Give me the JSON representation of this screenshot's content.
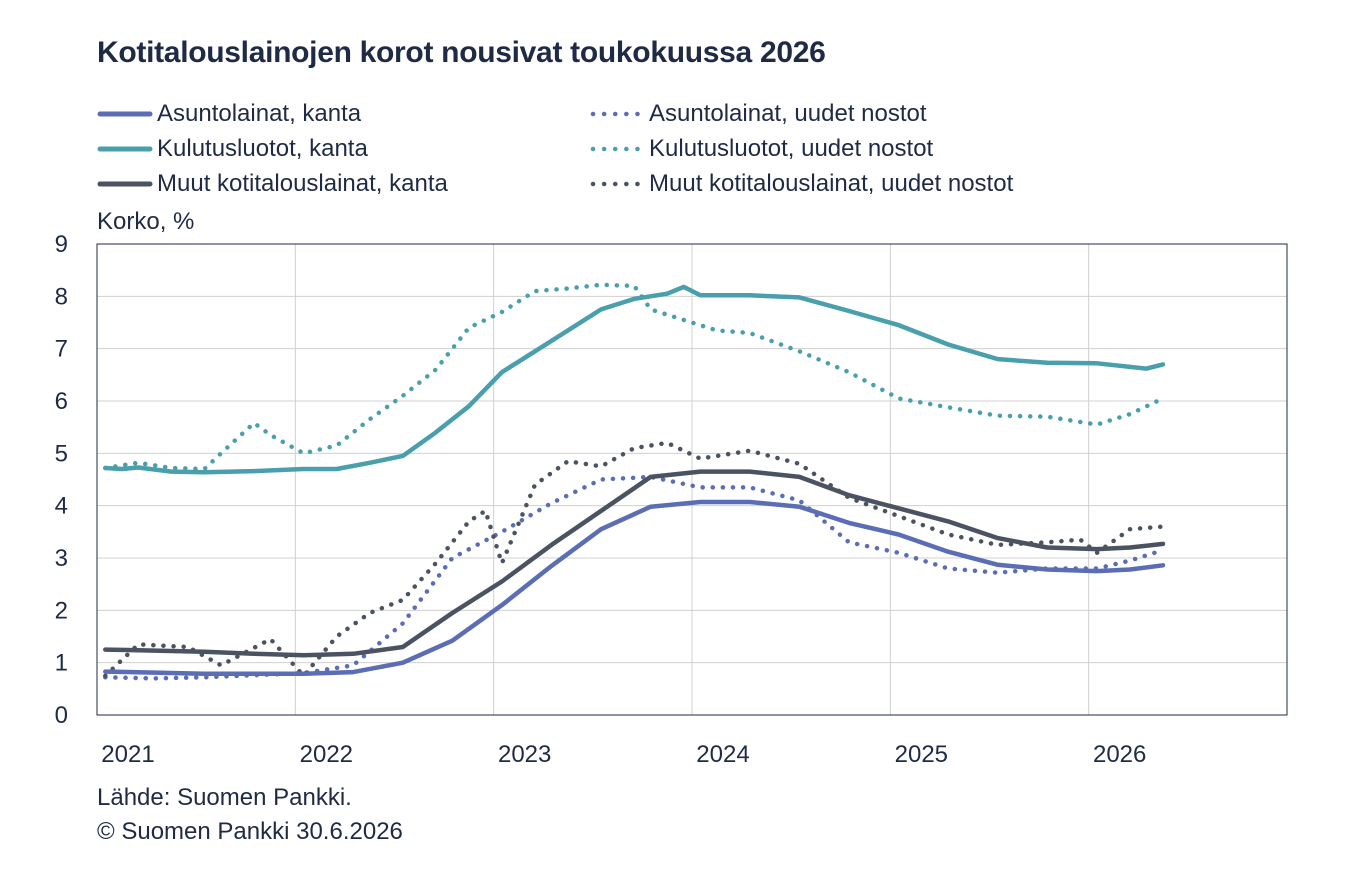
{
  "title": "Kotitalouslainojen korot nousivat toukokuussa 2026",
  "footer": {
    "source": "Lähde: Suomen Pankki.",
    "copyright": "© Suomen Pankki 30.6.2026"
  },
  "colors": {
    "asunto": "#5b6db5",
    "kulutus": "#4a9fad",
    "muut": "#4b5261",
    "grid": "#d0d0d0",
    "axis": "#1f2a44"
  },
  "chart_data": {
    "type": "line",
    "title": "Kotitalouslainojen korot nousivat toukokuussa 2026",
    "xlabel": "",
    "ylabel": "Korko, %",
    "ylim": [
      0,
      9
    ],
    "yticks": [
      0,
      1,
      2,
      3,
      4,
      5,
      6,
      7,
      8,
      9
    ],
    "xlim": [
      "2021-01",
      "2026-12"
    ],
    "xticks": [
      "2021",
      "2022",
      "2023",
      "2024",
      "2025",
      "2026"
    ],
    "grid": true,
    "legend_position": "top",
    "series": [
      {
        "name": "Asuntolainat, kanta",
        "style": "solid",
        "color_key": "asunto",
        "points": [
          [
            "2021-01",
            0.83
          ],
          [
            "2021-04",
            0.81
          ],
          [
            "2021-07",
            0.79
          ],
          [
            "2021-10",
            0.79
          ],
          [
            "2022-01",
            0.79
          ],
          [
            "2022-04",
            0.82
          ],
          [
            "2022-07",
            1.0
          ],
          [
            "2022-10",
            1.42
          ],
          [
            "2023-01",
            2.1
          ],
          [
            "2023-04",
            2.85
          ],
          [
            "2023-07",
            3.55
          ],
          [
            "2023-10",
            3.98
          ],
          [
            "2024-01",
            4.07
          ],
          [
            "2024-04",
            4.07
          ],
          [
            "2024-07",
            3.98
          ],
          [
            "2024-10",
            3.67
          ],
          [
            "2025-01",
            3.45
          ],
          [
            "2025-04",
            3.12
          ],
          [
            "2025-07",
            2.87
          ],
          [
            "2025-10",
            2.78
          ],
          [
            "2026-01",
            2.75
          ],
          [
            "2026-03",
            2.78
          ],
          [
            "2026-05",
            2.86
          ]
        ]
      },
      {
        "name": "Kulutusluotot, kanta",
        "style": "solid",
        "color_key": "kulutus",
        "points": [
          [
            "2021-01",
            4.72
          ],
          [
            "2021-02",
            4.7
          ],
          [
            "2021-03",
            4.73
          ],
          [
            "2021-05",
            4.65
          ],
          [
            "2021-07",
            4.64
          ],
          [
            "2021-10",
            4.66
          ],
          [
            "2022-01",
            4.7
          ],
          [
            "2022-03",
            4.7
          ],
          [
            "2022-05",
            4.82
          ],
          [
            "2022-07",
            4.95
          ],
          [
            "2022-09",
            5.4
          ],
          [
            "2022-11",
            5.9
          ],
          [
            "2023-01",
            6.55
          ],
          [
            "2023-03",
            6.95
          ],
          [
            "2023-05",
            7.35
          ],
          [
            "2023-07",
            7.75
          ],
          [
            "2023-09",
            7.95
          ],
          [
            "2023-11",
            8.05
          ],
          [
            "2023-12",
            8.18
          ],
          [
            "2024-01",
            8.02
          ],
          [
            "2024-04",
            8.02
          ],
          [
            "2024-07",
            7.98
          ],
          [
            "2024-10",
            7.72
          ],
          [
            "2025-01",
            7.45
          ],
          [
            "2025-04",
            7.08
          ],
          [
            "2025-07",
            6.8
          ],
          [
            "2025-10",
            6.73
          ],
          [
            "2026-01",
            6.72
          ],
          [
            "2026-04",
            6.62
          ],
          [
            "2026-05",
            6.7
          ]
        ]
      },
      {
        "name": "Muut kotitalouslainat, kanta",
        "style": "solid",
        "color_key": "muut",
        "points": [
          [
            "2021-01",
            1.25
          ],
          [
            "2021-04",
            1.23
          ],
          [
            "2021-07",
            1.21
          ],
          [
            "2021-10",
            1.17
          ],
          [
            "2022-01",
            1.14
          ],
          [
            "2022-04",
            1.17
          ],
          [
            "2022-07",
            1.3
          ],
          [
            "2022-10",
            1.95
          ],
          [
            "2023-01",
            2.55
          ],
          [
            "2023-04",
            3.25
          ],
          [
            "2023-07",
            3.9
          ],
          [
            "2023-10",
            4.55
          ],
          [
            "2024-01",
            4.65
          ],
          [
            "2024-04",
            4.65
          ],
          [
            "2024-07",
            4.55
          ],
          [
            "2024-10",
            4.2
          ],
          [
            "2025-01",
            3.95
          ],
          [
            "2025-04",
            3.7
          ],
          [
            "2025-07",
            3.38
          ],
          [
            "2025-10",
            3.2
          ],
          [
            "2026-01",
            3.17
          ],
          [
            "2026-03",
            3.2
          ],
          [
            "2026-05",
            3.27
          ]
        ]
      },
      {
        "name": "Asuntolainat, uudet nostot",
        "style": "dotted",
        "color_key": "asunto",
        "points": [
          [
            "2021-01",
            0.72
          ],
          [
            "2021-04",
            0.7
          ],
          [
            "2021-07",
            0.72
          ],
          [
            "2021-10",
            0.76
          ],
          [
            "2022-01",
            0.8
          ],
          [
            "2022-04",
            0.95
          ],
          [
            "2022-07",
            1.75
          ],
          [
            "2022-10",
            3.0
          ],
          [
            "2023-01",
            3.5
          ],
          [
            "2023-04",
            4.05
          ],
          [
            "2023-07",
            4.5
          ],
          [
            "2023-10",
            4.55
          ],
          [
            "2024-01",
            4.35
          ],
          [
            "2024-04",
            4.35
          ],
          [
            "2024-07",
            4.1
          ],
          [
            "2024-10",
            3.3
          ],
          [
            "2025-01",
            3.1
          ],
          [
            "2025-04",
            2.8
          ],
          [
            "2025-07",
            2.72
          ],
          [
            "2025-10",
            2.8
          ],
          [
            "2026-01",
            2.8
          ],
          [
            "2026-03",
            2.95
          ],
          [
            "2026-05",
            3.15
          ]
        ]
      },
      {
        "name": "Kulutusluotot, uudet nostot",
        "style": "dotted",
        "color_key": "kulutus",
        "points": [
          [
            "2021-01",
            4.72
          ],
          [
            "2021-03",
            4.82
          ],
          [
            "2021-05",
            4.72
          ],
          [
            "2021-07",
            4.7
          ],
          [
            "2021-08",
            5.0
          ],
          [
            "2021-10",
            5.58
          ],
          [
            "2021-11",
            5.35
          ],
          [
            "2022-01",
            5.0
          ],
          [
            "2022-03",
            5.15
          ],
          [
            "2022-05",
            5.65
          ],
          [
            "2022-07",
            6.1
          ],
          [
            "2022-09",
            6.6
          ],
          [
            "2022-11",
            7.4
          ],
          [
            "2023-01",
            7.7
          ],
          [
            "2023-03",
            8.1
          ],
          [
            "2023-05",
            8.15
          ],
          [
            "2023-07",
            8.22
          ],
          [
            "2023-09",
            8.2
          ],
          [
            "2023-10",
            7.75
          ],
          [
            "2023-12",
            7.55
          ],
          [
            "2024-02",
            7.35
          ],
          [
            "2024-04",
            7.3
          ],
          [
            "2024-07",
            6.95
          ],
          [
            "2024-10",
            6.55
          ],
          [
            "2025-01",
            6.05
          ],
          [
            "2025-04",
            5.88
          ],
          [
            "2025-07",
            5.72
          ],
          [
            "2025-10",
            5.7
          ],
          [
            "2026-01",
            5.55
          ],
          [
            "2026-03",
            5.75
          ],
          [
            "2026-05",
            6.05
          ]
        ]
      },
      {
        "name": "Muut kotitalouslainat, uudet nostot",
        "style": "dotted",
        "color_key": "muut",
        "points": [
          [
            "2021-01",
            0.75
          ],
          [
            "2021-03",
            1.35
          ],
          [
            "2021-06",
            1.3
          ],
          [
            "2021-08",
            0.95
          ],
          [
            "2021-11",
            1.45
          ],
          [
            "2022-01",
            0.75
          ],
          [
            "2022-03",
            1.5
          ],
          [
            "2022-05",
            1.95
          ],
          [
            "2022-07",
            2.2
          ],
          [
            "2022-09",
            2.9
          ],
          [
            "2022-11",
            3.7
          ],
          [
            "2022-12",
            3.9
          ],
          [
            "2023-01",
            2.9
          ],
          [
            "2023-03",
            4.4
          ],
          [
            "2023-05",
            4.85
          ],
          [
            "2023-07",
            4.75
          ],
          [
            "2023-09",
            5.1
          ],
          [
            "2023-11",
            5.2
          ],
          [
            "2024-01",
            4.9
          ],
          [
            "2024-04",
            5.05
          ],
          [
            "2024-07",
            4.8
          ],
          [
            "2024-10",
            4.15
          ],
          [
            "2025-01",
            3.8
          ],
          [
            "2025-04",
            3.45
          ],
          [
            "2025-07",
            3.25
          ],
          [
            "2025-10",
            3.3
          ],
          [
            "2025-12",
            3.35
          ],
          [
            "2026-01",
            3.1
          ],
          [
            "2026-03",
            3.55
          ],
          [
            "2026-05",
            3.6
          ]
        ]
      }
    ]
  }
}
